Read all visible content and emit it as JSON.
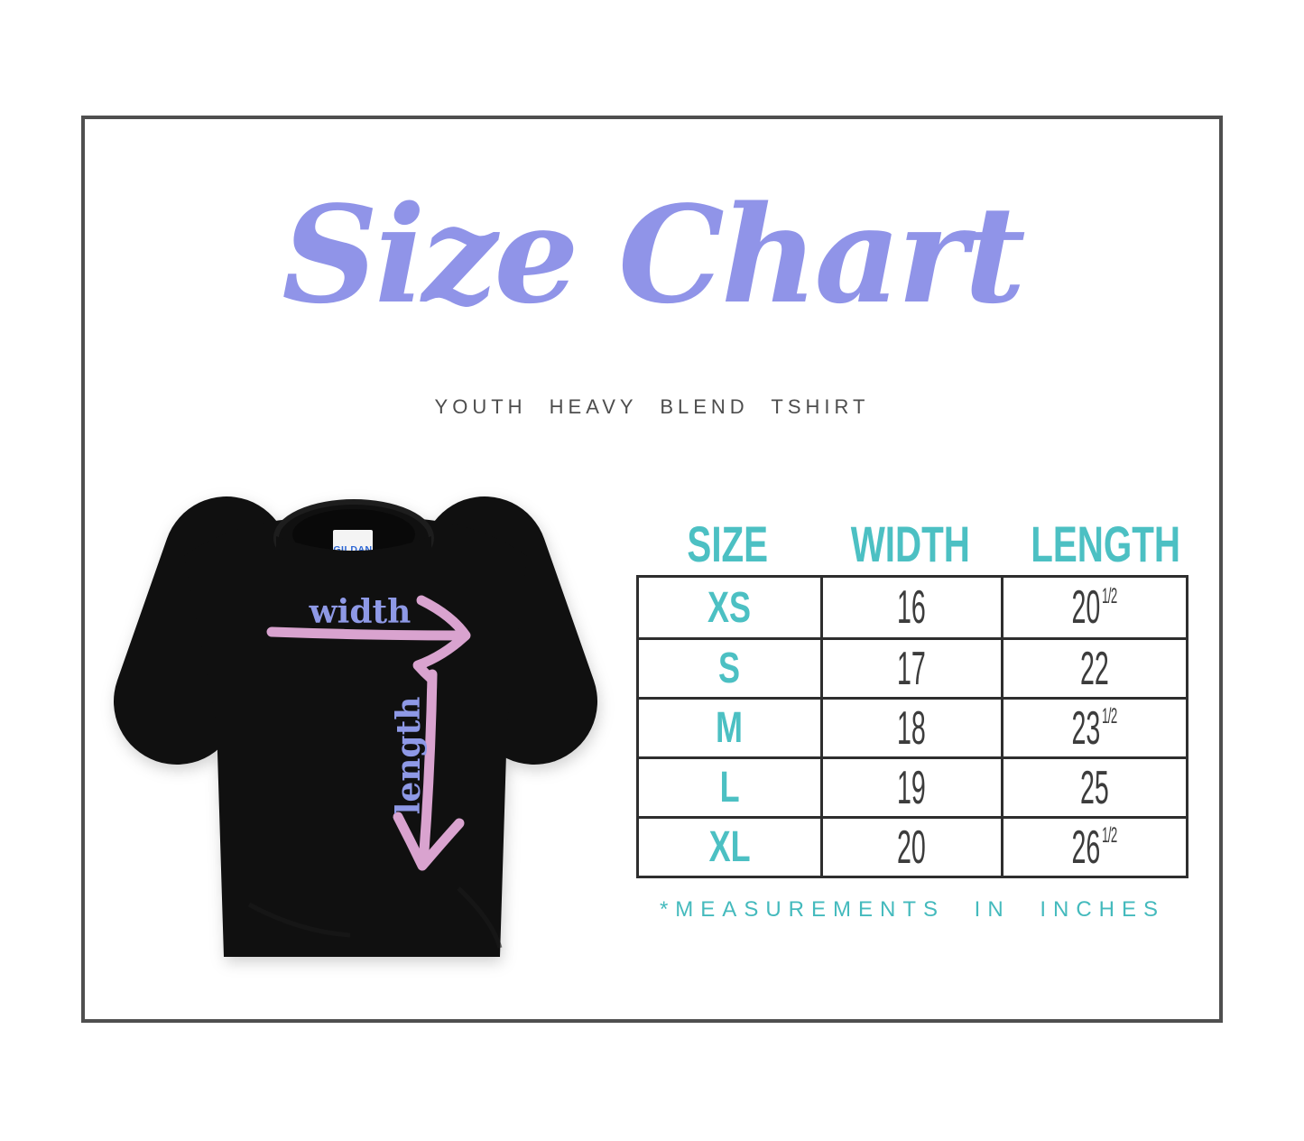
{
  "title": "Size Chart",
  "subtitle": "YOUTH HEAVY BLEND TSHIRT",
  "tshirt": {
    "tag_label": "GILDAN",
    "width_label": "width",
    "length_label": "length"
  },
  "size_table": {
    "columns": [
      "SIZE",
      "WIDTH",
      "LENGTH"
    ],
    "rows": [
      {
        "size": "XS",
        "width": "16",
        "length": "20",
        "frac": "1/2"
      },
      {
        "size": "S",
        "width": "17",
        "length": "22",
        "frac": ""
      },
      {
        "size": "M",
        "width": "18",
        "length": "23",
        "frac": "1/2"
      },
      {
        "size": "L",
        "width": "19",
        "length": "25",
        "frac": ""
      },
      {
        "size": "XL",
        "width": "20",
        "length": "26",
        "frac": "1/2"
      }
    ],
    "footnote": "*MEASUREMENTS IN INCHES"
  },
  "colors": {
    "title_periwinkle": "#9094e8",
    "label_periwinkle": "#8e99e6",
    "arrow_pink": "#d9a3cf",
    "teal_accent": "#4cc0c3",
    "number_ink": "#3c3c3c",
    "table_border": "#2e2e2e",
    "frame_border": "#4f4f4f",
    "shirt_black": "#101010",
    "tag_blue": "#2c66d4",
    "subtitle_gray": "#4d4d4d"
  },
  "chart_data": {
    "type": "table",
    "title": "Size Chart",
    "subtitle": "YOUTH HEAVY BLEND TSHIRT",
    "columns": [
      "SIZE",
      "WIDTH",
      "LENGTH"
    ],
    "rows": [
      [
        "XS",
        "16",
        "20 1/2"
      ],
      [
        "S",
        "17",
        "22"
      ],
      [
        "M",
        "18",
        "23 1/2"
      ],
      [
        "L",
        "19",
        "25"
      ],
      [
        "XL",
        "20",
        "26 1/2"
      ]
    ],
    "units": "inches",
    "note": "*MEASUREMENTS IN INCHES"
  }
}
